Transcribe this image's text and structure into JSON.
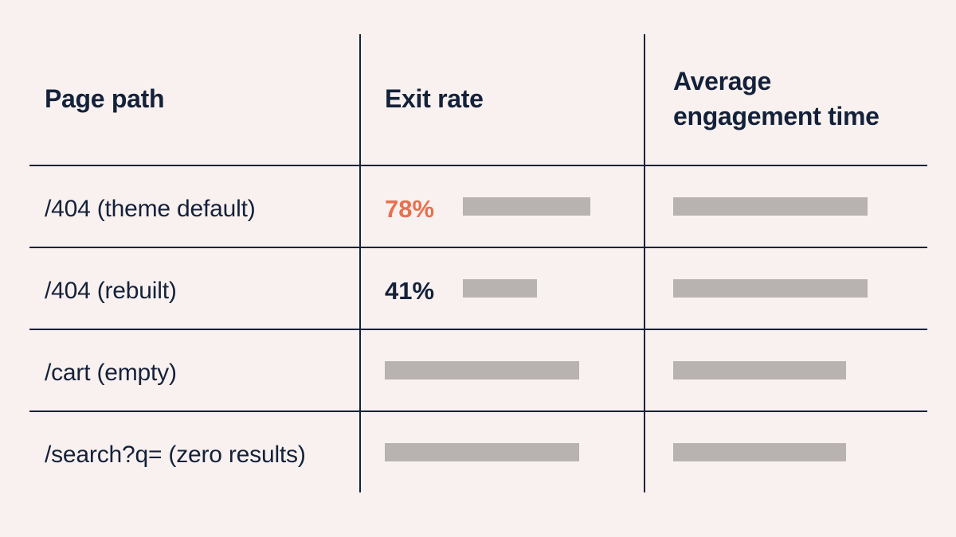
{
  "headers": {
    "page_path": "Page path",
    "exit_rate": "Exit rate",
    "engagement_line1": "Average",
    "engagement_line2": "engagement time"
  },
  "rows": [
    {
      "path": "/404 (theme default)",
      "exit_rate": "78%",
      "exit_rate_value": 78,
      "exit_rate_color": "#e8704f",
      "exit_fill": 0.81,
      "engagement_fill": 1.0
    },
    {
      "path": "/404 (rebuilt)",
      "exit_rate": "41%",
      "exit_rate_value": 41,
      "exit_rate_color": "#14213a",
      "exit_fill": 0.47,
      "engagement_fill": 1.0
    },
    {
      "path": "/cart (empty)",
      "exit_rate": "",
      "exit_fill": 1.0,
      "engagement_fill": 0.89
    },
    {
      "path": "/search?q= (zero results)",
      "exit_rate": "",
      "exit_fill": 1.0,
      "engagement_fill": 0.89
    }
  ],
  "colors": {
    "background": "#f9f1ef",
    "text": "#14213a",
    "highlight": "#e8704f",
    "placeholder_bar": "#b8b2b0"
  }
}
